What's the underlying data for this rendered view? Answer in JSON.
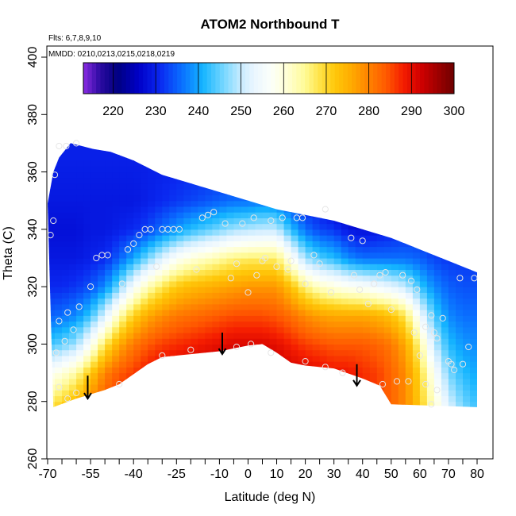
{
  "chart_data": {
    "type": "heatmap",
    "title": "ATOM2 Northbound T",
    "flights_note": "Flts: 6,7,8,9,10",
    "dates_note": "MMDD: 0210,0213,0215,0218,0219",
    "xlabel": "Latitude (deg N)",
    "ylabel": "Theta (C)",
    "xlim": [
      -70,
      82
    ],
    "ylim": [
      260,
      402
    ],
    "x_ticks": [
      -70,
      -55,
      -40,
      -25,
      -10,
      0,
      10,
      20,
      30,
      40,
      50,
      60,
      70,
      80
    ],
    "x_minor_ticks": [
      -65,
      -60,
      -50,
      -45,
      -35,
      -30,
      -20,
      -15,
      -5,
      5,
      15,
      25,
      35,
      45,
      55,
      65,
      75
    ],
    "y_ticks": [
      260,
      280,
      300,
      320,
      340,
      360,
      380,
      400
    ],
    "colorbar": {
      "range": [
        213,
        300
      ],
      "ticks": [
        220,
        230,
        240,
        250,
        260,
        270,
        280,
        290,
        300
      ],
      "colors": [
        {
          "v": 213,
          "c": "#8a2be2"
        },
        {
          "v": 217,
          "c": "#2a0aa0"
        },
        {
          "v": 221,
          "c": "#000080"
        },
        {
          "v": 226,
          "c": "#0000c8"
        },
        {
          "v": 231,
          "c": "#0a28f0"
        },
        {
          "v": 236,
          "c": "#0a6eff"
        },
        {
          "v": 241,
          "c": "#14b4ff"
        },
        {
          "v": 246,
          "c": "#78d7ff"
        },
        {
          "v": 250,
          "c": "#c8ebff"
        },
        {
          "v": 253,
          "c": "#eaf6ff"
        },
        {
          "v": 257,
          "c": "#fbfffa"
        },
        {
          "v": 261,
          "c": "#ffffd2"
        },
        {
          "v": 265,
          "c": "#fffa96"
        },
        {
          "v": 268,
          "c": "#ffe650"
        },
        {
          "v": 272,
          "c": "#ffc80a"
        },
        {
          "v": 276,
          "c": "#ffaa00"
        },
        {
          "v": 280,
          "c": "#ff8200"
        },
        {
          "v": 284,
          "c": "#ff5a00"
        },
        {
          "v": 288,
          "c": "#f51e00"
        },
        {
          "v": 292,
          "c": "#d20000"
        },
        {
          "v": 296,
          "c": "#a00000"
        },
        {
          "v": 300,
          "c": "#6e0000"
        }
      ]
    },
    "coverage": {
      "upper_boundary": [
        [
          -70,
          349
        ],
        [
          -68,
          360
        ],
        [
          -66,
          365
        ],
        [
          -62,
          370
        ],
        [
          -58,
          369
        ],
        [
          -54,
          368
        ],
        [
          -48,
          367
        ],
        [
          -40,
          364
        ],
        [
          -30,
          359
        ],
        [
          -20,
          356
        ],
        [
          -10,
          353
        ],
        [
          0,
          350
        ],
        [
          10,
          347
        ],
        [
          20,
          345
        ],
        [
          30,
          343
        ],
        [
          40,
          340
        ],
        [
          50,
          337
        ],
        [
          60,
          333
        ],
        [
          70,
          329
        ],
        [
          80,
          325
        ]
      ],
      "lower_boundary": [
        [
          -68,
          278
        ],
        [
          -60,
          281
        ],
        [
          -50,
          284
        ],
        [
          -45,
          286
        ],
        [
          -35,
          293
        ],
        [
          -30,
          295.5
        ],
        [
          -20,
          296.5
        ],
        [
          -10,
          297.5
        ],
        [
          0,
          299.5
        ],
        [
          5,
          300
        ],
        [
          10,
          297
        ],
        [
          15,
          293.5
        ],
        [
          20,
          292.5
        ],
        [
          30,
          291.5
        ],
        [
          40,
          288
        ],
        [
          46,
          285.5
        ],
        [
          50,
          279
        ],
        [
          80,
          278
        ]
      ]
    },
    "temperature_field": {
      "column_latitudes": [
        -70,
        -65,
        -60,
        -55,
        -50,
        -45,
        -40,
        -35,
        -30,
        -25,
        -20,
        -15,
        -10,
        -5,
        0,
        5,
        10,
        15,
        20,
        25,
        30,
        35,
        40,
        45,
        50,
        55,
        60,
        65,
        70,
        75,
        80
      ],
      "theta_levels": [
        278,
        290,
        300,
        310,
        320,
        330,
        340,
        350,
        365
      ],
      "T_by_column": [
        [
          268,
          257,
          243,
          235,
          231,
          229,
          228,
          229,
          230
        ],
        [
          272,
          260,
          245,
          236,
          231,
          229,
          228,
          229,
          230
        ],
        [
          276,
          264,
          248,
          238,
          232,
          229,
          228,
          229,
          230
        ],
        [
          281,
          272,
          257,
          243,
          234,
          230,
          229,
          229,
          230
        ],
        [
          285,
          280,
          268,
          252,
          238,
          231,
          229,
          229,
          230
        ],
        [
          287,
          284,
          276,
          263,
          246,
          235,
          230,
          229,
          230
        ],
        [
          289,
          286,
          281,
          271,
          256,
          240,
          231,
          229,
          230
        ],
        [
          290,
          289,
          284,
          276,
          263,
          246,
          233,
          230,
          230
        ],
        [
          291,
          291,
          286,
          279,
          268,
          252,
          236,
          231,
          230
        ],
        [
          292,
          292,
          287,
          281,
          272,
          257,
          239,
          232,
          230
        ],
        [
          293,
          293,
          288,
          282,
          274,
          260,
          242,
          233,
          230
        ],
        [
          293,
          293,
          289,
          283,
          275,
          262,
          244,
          234,
          230
        ],
        [
          294,
          294,
          290,
          284,
          276,
          264,
          246,
          235,
          230
        ],
        [
          294,
          294,
          291,
          285,
          277,
          266,
          248,
          236,
          230
        ],
        [
          294,
          294,
          291,
          285,
          278,
          267,
          249,
          236,
          230
        ],
        [
          294,
          294,
          291,
          285,
          278,
          267,
          250,
          237,
          230
        ],
        [
          293,
          293,
          290,
          284,
          278,
          267,
          250,
          236,
          230
        ],
        [
          292,
          292,
          288,
          282,
          273,
          258,
          242,
          233,
          230
        ],
        [
          291,
          291,
          286,
          279,
          266,
          248,
          236,
          230,
          229
        ],
        [
          290,
          290,
          285,
          277,
          262,
          244,
          233,
          229,
          229
        ],
        [
          290,
          289,
          284,
          276,
          260,
          242,
          232,
          226,
          229
        ],
        [
          289,
          289,
          284,
          276,
          258,
          238,
          229,
          221,
          229
        ],
        [
          288,
          287,
          284,
          276,
          257,
          236,
          228,
          219,
          229
        ],
        [
          286,
          286,
          283,
          275,
          255,
          236,
          229,
          222,
          229
        ],
        [
          283,
          283,
          281,
          273,
          253,
          236,
          230,
          226,
          229
        ],
        [
          279,
          279,
          276,
          268,
          250,
          236,
          231,
          228,
          229
        ],
        [
          272,
          270,
          265,
          255,
          243,
          235,
          231,
          229,
          229
        ],
        [
          262,
          257,
          250,
          244,
          238,
          233,
          231,
          229,
          229
        ],
        [
          252,
          246,
          242,
          238,
          235,
          232,
          230,
          229,
          229
        ],
        [
          246,
          242,
          239,
          236,
          234,
          232,
          230,
          229,
          229
        ],
        [
          243,
          240,
          238,
          236,
          234,
          232,
          230,
          229,
          229
        ]
      ]
    },
    "observations": [
      [
        -69,
        338
      ],
      [
        -68,
        343
      ],
      [
        -67.5,
        359
      ],
      [
        -66,
        369
      ],
      [
        -63.5,
        369
      ],
      [
        -60,
        370
      ],
      [
        -67,
        297
      ],
      [
        -66,
        308
      ],
      [
        -64,
        301
      ],
      [
        -63,
        311
      ],
      [
        -61,
        305
      ],
      [
        -59,
        313
      ],
      [
        -66,
        285
      ],
      [
        -63,
        281
      ],
      [
        -60,
        283
      ],
      [
        -55,
        320
      ],
      [
        -53,
        330
      ],
      [
        -51,
        331
      ],
      [
        -49,
        331
      ],
      [
        -45,
        286
      ],
      [
        -44,
        321
      ],
      [
        -42,
        333
      ],
      [
        -40,
        335
      ],
      [
        -38,
        338
      ],
      [
        -36,
        340
      ],
      [
        -34,
        340
      ],
      [
        -32,
        327
      ],
      [
        -30,
        340
      ],
      [
        -28,
        340
      ],
      [
        -26,
        340
      ],
      [
        -24,
        340
      ],
      [
        -30,
        296
      ],
      [
        -20,
        298
      ],
      [
        -18,
        326
      ],
      [
        -16,
        344
      ],
      [
        -14,
        345
      ],
      [
        -12,
        346
      ],
      [
        -8,
        342
      ],
      [
        -6,
        323
      ],
      [
        -4,
        328
      ],
      [
        -4,
        299
      ],
      [
        -2,
        342
      ],
      [
        0,
        318
      ],
      [
        1,
        300
      ],
      [
        2,
        344
      ],
      [
        3,
        324
      ],
      [
        5,
        329
      ],
      [
        6,
        330
      ],
      [
        8,
        343
      ],
      [
        8,
        297
      ],
      [
        10,
        327
      ],
      [
        12,
        344
      ],
      [
        14,
        326
      ],
      [
        15,
        329
      ],
      [
        17,
        344
      ],
      [
        19,
        344
      ],
      [
        20,
        294
      ],
      [
        20,
        321
      ],
      [
        23,
        331
      ],
      [
        25,
        328
      ],
      [
        27,
        347
      ],
      [
        27,
        292
      ],
      [
        29,
        318
      ],
      [
        33,
        290
      ],
      [
        36,
        337
      ],
      [
        37,
        324
      ],
      [
        39,
        319
      ],
      [
        40,
        336
      ],
      [
        42,
        314
      ],
      [
        44,
        321
      ],
      [
        46,
        324
      ],
      [
        47,
        286
      ],
      [
        48,
        325
      ],
      [
        50,
        312
      ],
      [
        52,
        287
      ],
      [
        54,
        324
      ],
      [
        56,
        287
      ],
      [
        57,
        322
      ],
      [
        58,
        304
      ],
      [
        59,
        319
      ],
      [
        62,
        306
      ],
      [
        64,
        310
      ],
      [
        65,
        304
      ],
      [
        66,
        302
      ],
      [
        68,
        309
      ],
      [
        70,
        294
      ],
      [
        71,
        293
      ],
      [
        72,
        291
      ],
      [
        74,
        323
      ],
      [
        75,
        293
      ],
      [
        77,
        299
      ],
      [
        60,
        296
      ],
      [
        62,
        286
      ],
      [
        64,
        279
      ],
      [
        66,
        284
      ],
      [
        79,
        323
      ]
    ],
    "arrows": [
      {
        "lat": -56,
        "theta_top": 289,
        "theta_bottom": 281
      },
      {
        "lat": -9,
        "theta_top": 304,
        "theta_bottom": 296.5
      },
      {
        "lat": 38,
        "theta_top": 293,
        "theta_bottom": 285.5
      }
    ]
  }
}
